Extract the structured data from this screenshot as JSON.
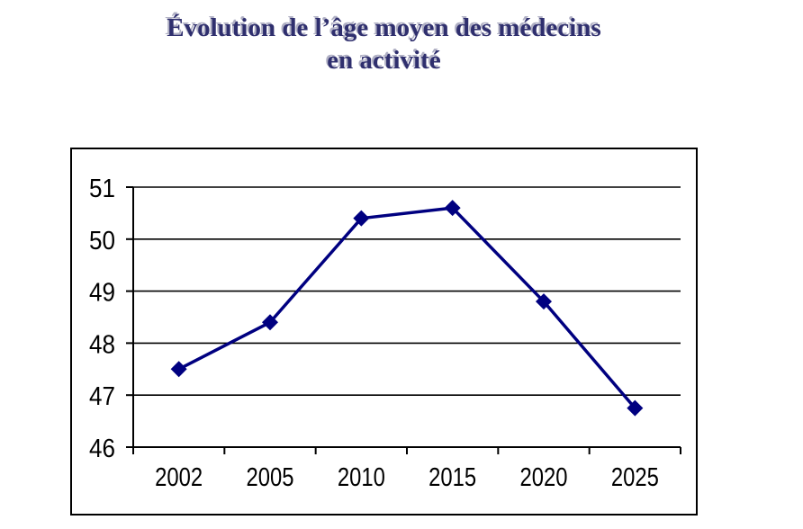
{
  "title": {
    "line1": "Évolution de l’âge moyen des médecins",
    "line2": "en activité"
  },
  "chart_data": {
    "type": "line",
    "title": "Évolution de l’âge moyen des médecins en activité",
    "categories": [
      "2002",
      "2005",
      "2010",
      "2015",
      "2020",
      "2025"
    ],
    "values": [
      47.5,
      48.4,
      50.4,
      50.6,
      48.8,
      46.75
    ],
    "xlabel": "",
    "ylabel": "",
    "ylim": [
      46,
      51
    ],
    "yticks": [
      46,
      47,
      48,
      49,
      50,
      51
    ],
    "grid": true,
    "legend": "none",
    "marker_shape": "diamond",
    "colors": {
      "line": "#000080",
      "marker": "#000080",
      "gridline": "#000000",
      "axis": "#000000",
      "tick_label": "#000000",
      "title_text": "#2f2f6e",
      "title_shadow": "#b0b0c4",
      "plot_border": "#000000"
    }
  }
}
